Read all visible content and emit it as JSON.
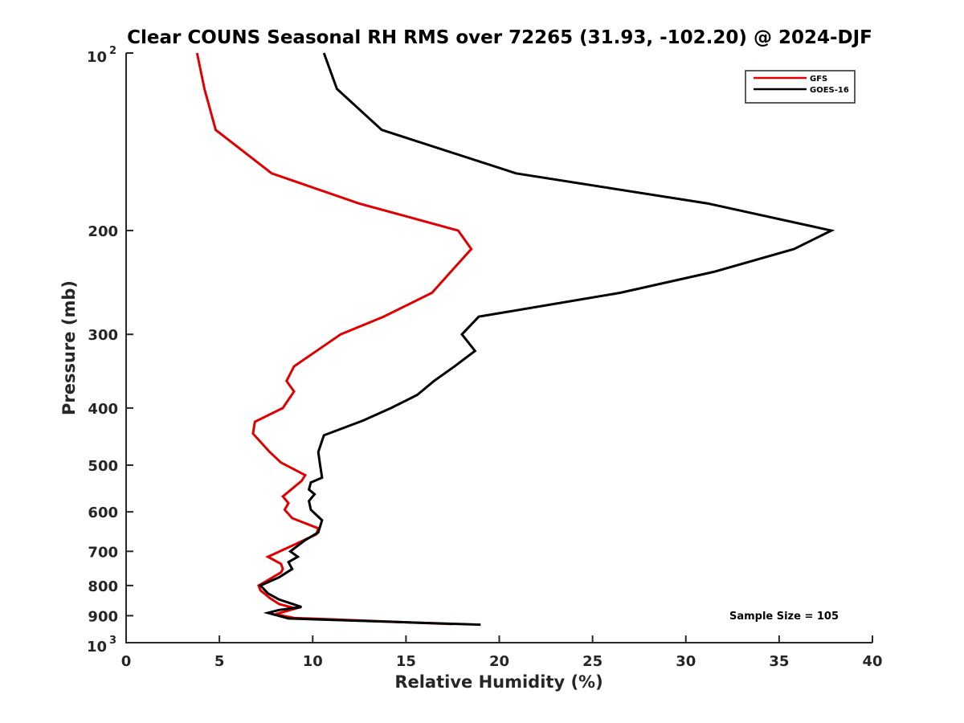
{
  "chart_data": {
    "type": "line",
    "title": "Clear COUNS Seasonal RH RMS over 72265 (31.93, -102.20) @ 2024-DJF",
    "xlabel": "Relative Humidity (%)",
    "ylabel": "Pressure (mb)",
    "xlim": [
      0,
      40
    ],
    "ylim": [
      100,
      1000
    ],
    "yscale": "log",
    "y_reversed": true,
    "x_ticks": [
      0,
      5,
      10,
      15,
      20,
      25,
      30,
      35,
      40
    ],
    "x_tick_labels": [
      "0",
      "5",
      "10",
      "15",
      "20",
      "25",
      "30",
      "35",
      "40"
    ],
    "y_ticks": [
      200,
      300,
      400,
      500,
      600,
      700,
      800,
      900
    ],
    "y_tick_labels": [
      "200",
      "300",
      "400",
      "500",
      "600",
      "700",
      "800",
      "900"
    ],
    "y_end_ticks": [
      {
        "value": 100,
        "base": "10",
        "exp": "2"
      },
      {
        "value": 1000,
        "base": "10",
        "exp": "3"
      }
    ],
    "grid": false,
    "legend_position": "top-right",
    "series": [
      {
        "name": "GFS",
        "color": "#e00000",
        "points": [
          [
            3.8,
            100
          ],
          [
            4.2,
            115
          ],
          [
            4.8,
            135
          ],
          [
            7.8,
            160
          ],
          [
            12.5,
            180
          ],
          [
            17.8,
            200
          ],
          [
            18.5,
            215
          ],
          [
            17.4,
            235
          ],
          [
            16.4,
            255
          ],
          [
            13.8,
            280
          ],
          [
            11.5,
            300
          ],
          [
            9.0,
            340
          ],
          [
            8.6,
            360
          ],
          [
            9.0,
            375
          ],
          [
            8.4,
            400
          ],
          [
            6.9,
            422
          ],
          [
            6.8,
            442
          ],
          [
            7.7,
            475
          ],
          [
            8.3,
            495
          ],
          [
            9.6,
            520
          ],
          [
            9.4,
            532
          ],
          [
            8.4,
            565
          ],
          [
            8.7,
            580
          ],
          [
            8.5,
            595
          ],
          [
            8.9,
            615
          ],
          [
            10.3,
            640
          ],
          [
            10.2,
            655
          ],
          [
            9.1,
            680
          ],
          [
            7.6,
            715
          ],
          [
            8.3,
            735
          ],
          [
            8.4,
            750
          ],
          [
            8.3,
            760
          ],
          [
            7.4,
            790
          ],
          [
            7.1,
            800
          ],
          [
            7.2,
            815
          ],
          [
            7.7,
            840
          ],
          [
            8.2,
            860
          ],
          [
            9.1,
            875
          ],
          [
            8.0,
            895
          ],
          [
            9.0,
            908
          ],
          [
            17.5,
            930
          ]
        ]
      },
      {
        "name": "GOES-16",
        "color": "#000000",
        "points": [
          [
            10.6,
            100
          ],
          [
            11.3,
            115
          ],
          [
            13.7,
            135
          ],
          [
            20.9,
            160
          ],
          [
            31.2,
            180
          ],
          [
            37.8,
            200
          ],
          [
            35.8,
            215
          ],
          [
            31.5,
            235
          ],
          [
            26.5,
            255
          ],
          [
            18.9,
            280
          ],
          [
            18.0,
            300
          ],
          [
            18.7,
            320
          ],
          [
            17.6,
            340
          ],
          [
            16.5,
            360
          ],
          [
            15.6,
            380
          ],
          [
            14.2,
            400
          ],
          [
            12.7,
            420
          ],
          [
            10.6,
            445
          ],
          [
            10.3,
            475
          ],
          [
            10.4,
            500
          ],
          [
            10.5,
            525
          ],
          [
            9.9,
            535
          ],
          [
            9.8,
            550
          ],
          [
            10.1,
            560
          ],
          [
            9.8,
            575
          ],
          [
            9.9,
            595
          ],
          [
            10.5,
            620
          ],
          [
            10.3,
            650
          ],
          [
            9.6,
            670
          ],
          [
            8.8,
            700
          ],
          [
            9.2,
            715
          ],
          [
            8.7,
            730
          ],
          [
            8.9,
            750
          ],
          [
            8.2,
            775
          ],
          [
            7.2,
            800
          ],
          [
            7.6,
            825
          ],
          [
            8.2,
            845
          ],
          [
            9.4,
            870
          ],
          [
            8.2,
            880
          ],
          [
            7.6,
            890
          ],
          [
            8.7,
            910
          ],
          [
            19.0,
            932
          ]
        ]
      }
    ],
    "annotations": [
      "Sample Size = 105"
    ]
  }
}
